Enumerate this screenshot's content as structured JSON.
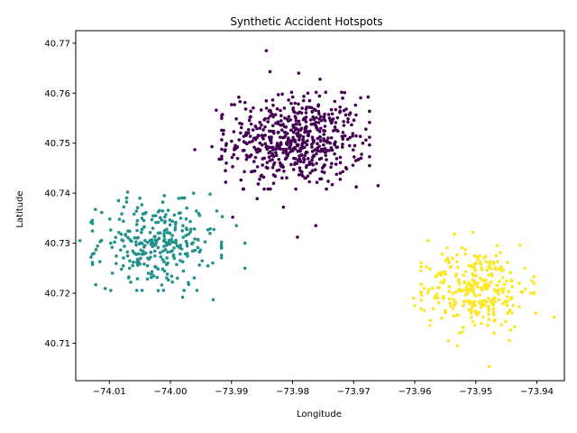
{
  "chart_data": {
    "type": "scatter",
    "title": "Synthetic Accident Hotspots",
    "xlabel": "Longitude",
    "ylabel": "Latitude",
    "xlim": [
      -74.0155,
      -73.9355
    ],
    "ylim": [
      40.7025,
      40.7725
    ],
    "xticks": [
      -74.01,
      -74.0,
      -73.99,
      -73.98,
      -73.97,
      -73.96,
      -73.95,
      -73.94
    ],
    "xtick_labels": [
      "−74.01",
      "−74.00",
      "−73.99",
      "−73.98",
      "−73.97",
      "−73.96",
      "−73.95",
      "−73.94"
    ],
    "yticks": [
      40.71,
      40.72,
      40.73,
      40.74,
      40.75,
      40.76,
      40.77
    ],
    "ytick_labels": [
      "40.71",
      "40.72",
      "40.73",
      "40.74",
      "40.75",
      "40.76",
      "40.77"
    ],
    "grid": false,
    "legend": false,
    "series": [
      {
        "color": "#440154",
        "center": [
          -73.9795,
          40.7505
        ],
        "spread": [
          0.0055,
          0.0044
        ],
        "n": 600,
        "points": [
          [
            -73.9843,
            40.7685
          ],
          [
            -73.9837,
            40.7643
          ],
          [
            -73.979,
            40.764
          ],
          [
            -73.9755,
            40.7628
          ],
          [
            -73.9888,
            40.7592
          ],
          [
            -73.99,
            40.7577
          ],
          [
            -73.9718,
            40.759
          ],
          [
            -73.9697,
            40.7576
          ],
          [
            -73.9925,
            40.7566
          ],
          [
            -73.9775,
            40.76
          ],
          [
            -73.966,
            40.7415
          ],
          [
            -73.9685,
            40.75
          ],
          [
            -73.996,
            40.7487
          ],
          [
            -73.9792,
            40.7312
          ],
          [
            -73.9762,
            40.7335
          ],
          [
            -73.9815,
            40.7372
          ],
          [
            -73.9858,
            40.7389
          ],
          [
            -73.9898,
            40.7352
          ],
          [
            -73.9932,
            40.7493
          ],
          [
            -73.991,
            40.7445
          ],
          [
            -73.992,
            40.7468
          ],
          [
            -73.9735,
            40.7417
          ],
          [
            -73.9722,
            40.744
          ],
          [
            -73.9688,
            40.747
          ]
        ]
      },
      {
        "color": "#21918c",
        "center": [
          -74.0022,
          40.7298
        ],
        "spread": [
          0.0048,
          0.0042
        ],
        "n": 300,
        "points": [
          [
            -74.0148,
            40.7305
          ],
          [
            -74.013,
            40.7272
          ],
          [
            -74.0115,
            40.7303
          ],
          [
            -74.013,
            40.7342
          ],
          [
            -74.0085,
            40.7385
          ],
          [
            -74.007,
            40.7402
          ],
          [
            -74.005,
            40.739
          ],
          [
            -74.001,
            40.7395
          ],
          [
            -73.9962,
            40.74
          ],
          [
            -73.9935,
            40.7398
          ],
          [
            -73.9915,
            40.7353
          ],
          [
            -73.9892,
            40.7335
          ],
          [
            -73.9878,
            40.73
          ],
          [
            -73.9878,
            40.725
          ],
          [
            -73.993,
            40.7187
          ],
          [
            -73.998,
            40.7192
          ],
          [
            -74.002,
            40.7205
          ],
          [
            -74.0065,
            40.7222
          ],
          [
            -74.008,
            40.7248
          ],
          [
            -74.0095,
            40.724
          ]
        ]
      },
      {
        "color": "#fde725",
        "center": [
          -73.9497,
          40.7208
        ],
        "spread": [
          0.0042,
          0.004
        ],
        "n": 300,
        "points": [
          [
            -73.9372,
            40.7152
          ],
          [
            -73.9478,
            40.7053
          ],
          [
            -73.953,
            40.7095
          ],
          [
            -73.9545,
            40.7105
          ],
          [
            -73.9575,
            40.7135
          ],
          [
            -73.96,
            40.7175
          ],
          [
            -73.9602,
            40.719
          ],
          [
            -73.959,
            40.7245
          ],
          [
            -73.9578,
            40.7305
          ],
          [
            -73.9535,
            40.7318
          ],
          [
            -73.9505,
            40.7322
          ],
          [
            -73.9465,
            40.7295
          ],
          [
            -73.942,
            40.725
          ],
          [
            -73.9408,
            40.7225
          ],
          [
            -73.9402,
            40.716
          ],
          [
            -73.9445,
            40.7105
          ],
          [
            -73.947,
            40.712
          ],
          [
            -73.941,
            40.72
          ],
          [
            -73.9585,
            40.721
          ],
          [
            -73.9555,
            40.7278
          ]
        ]
      }
    ]
  }
}
